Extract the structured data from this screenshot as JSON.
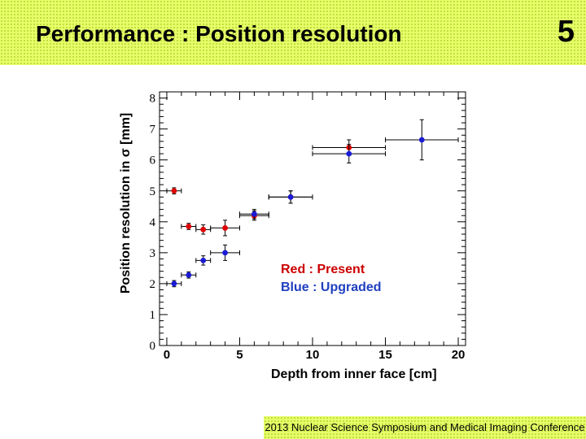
{
  "slide": {
    "title": "Performance : Position resolution",
    "number": "5",
    "footer": "2013 Nuclear Science Symposium and Medical Imaging Conference"
  },
  "legend": {
    "red": "Red : Present",
    "blue": "Blue : Upgraded"
  },
  "colors": {
    "header_bg": "#e6ff6a",
    "red_series": "#e00000",
    "blue_series": "#1a1ad6"
  },
  "chart_data": {
    "type": "scatter",
    "xlabel": "Depth from inner face [cm]",
    "ylabel": "Position resolution in σ [mm]",
    "xlim": [
      -0.5,
      20.5
    ],
    "ylim": [
      0,
      8.2
    ],
    "x_ticks": [
      0,
      5,
      10,
      15,
      20
    ],
    "y_ticks": [
      0,
      1,
      2,
      3,
      4,
      5,
      6,
      7,
      8
    ],
    "grid": false,
    "series": [
      {
        "name": "Red : Present",
        "color": "red",
        "points": [
          {
            "x": 0.5,
            "y": 5.0,
            "xerr": 0.5,
            "yerr": 0.1
          },
          {
            "x": 1.5,
            "y": 3.85,
            "xerr": 0.5,
            "yerr": 0.1
          },
          {
            "x": 2.5,
            "y": 3.75,
            "xerr": 0.5,
            "yerr": 0.15
          },
          {
            "x": 4.0,
            "y": 3.8,
            "xerr": 1.0,
            "yerr": 0.25
          },
          {
            "x": 6.0,
            "y": 4.2,
            "xerr": 1.0,
            "yerr": 0.15
          },
          {
            "x": 8.5,
            "y": 4.8,
            "xerr": 1.5,
            "yerr": 0.2
          },
          {
            "x": 12.5,
            "y": 6.4,
            "xerr": 2.5,
            "yerr": 0.25
          }
        ]
      },
      {
        "name": "Blue : Upgraded",
        "color": "blue",
        "points": [
          {
            "x": 0.5,
            "y": 2.0,
            "xerr": 0.5,
            "yerr": 0.1
          },
          {
            "x": 1.5,
            "y": 2.28,
            "xerr": 0.5,
            "yerr": 0.1
          },
          {
            "x": 2.5,
            "y": 2.75,
            "xerr": 0.5,
            "yerr": 0.15
          },
          {
            "x": 4.0,
            "y": 3.0,
            "xerr": 1.0,
            "yerr": 0.25
          },
          {
            "x": 6.0,
            "y": 4.25,
            "xerr": 1.0,
            "yerr": 0.15
          },
          {
            "x": 8.5,
            "y": 4.8,
            "xerr": 1.5,
            "yerr": 0.2
          },
          {
            "x": 12.5,
            "y": 6.2,
            "xerr": 2.5,
            "yerr": 0.3
          },
          {
            "x": 17.5,
            "y": 6.65,
            "xerr": 2.5,
            "yerr": 0.65
          }
        ]
      }
    ]
  }
}
